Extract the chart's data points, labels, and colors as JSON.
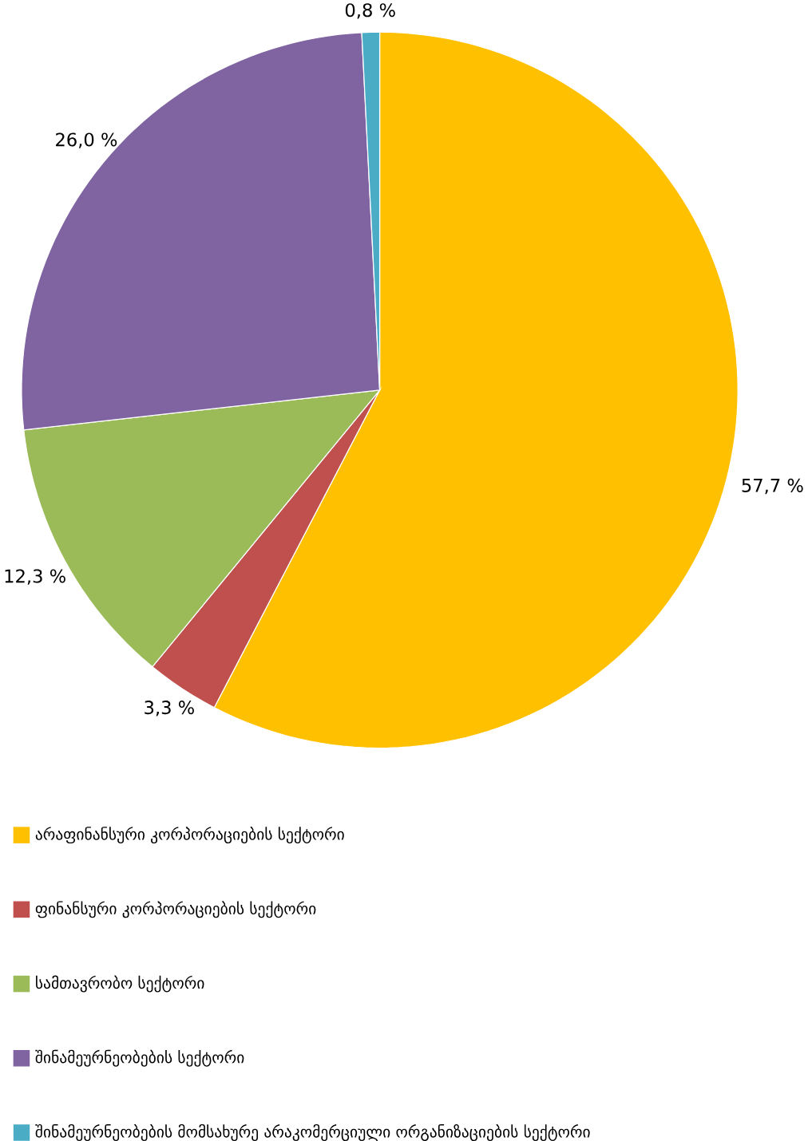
{
  "chart_data": {
    "type": "pie",
    "categories": [
      "არაფინანსური კორპორაციების სექტორი",
      "ფინანსური კორპორაციების სექტორი",
      "სამთავრობო სექტორი",
      "შინამეურნეობების სექტორი",
      "შინამეურნეობების მომსახურე არაკომერციული ორგანიზაციების სექტორი"
    ],
    "values": [
      57.7,
      3.3,
      12.3,
      26.0,
      0.8
    ],
    "value_labels": [
      "57,7 %",
      "3,3 %",
      "12,3 %",
      "26,0 %",
      "0,8 %"
    ],
    "colors": [
      "#ffc000",
      "#c0504d",
      "#9bbb59",
      "#8064a2",
      "#4bacc6"
    ],
    "legend": "bottom"
  }
}
